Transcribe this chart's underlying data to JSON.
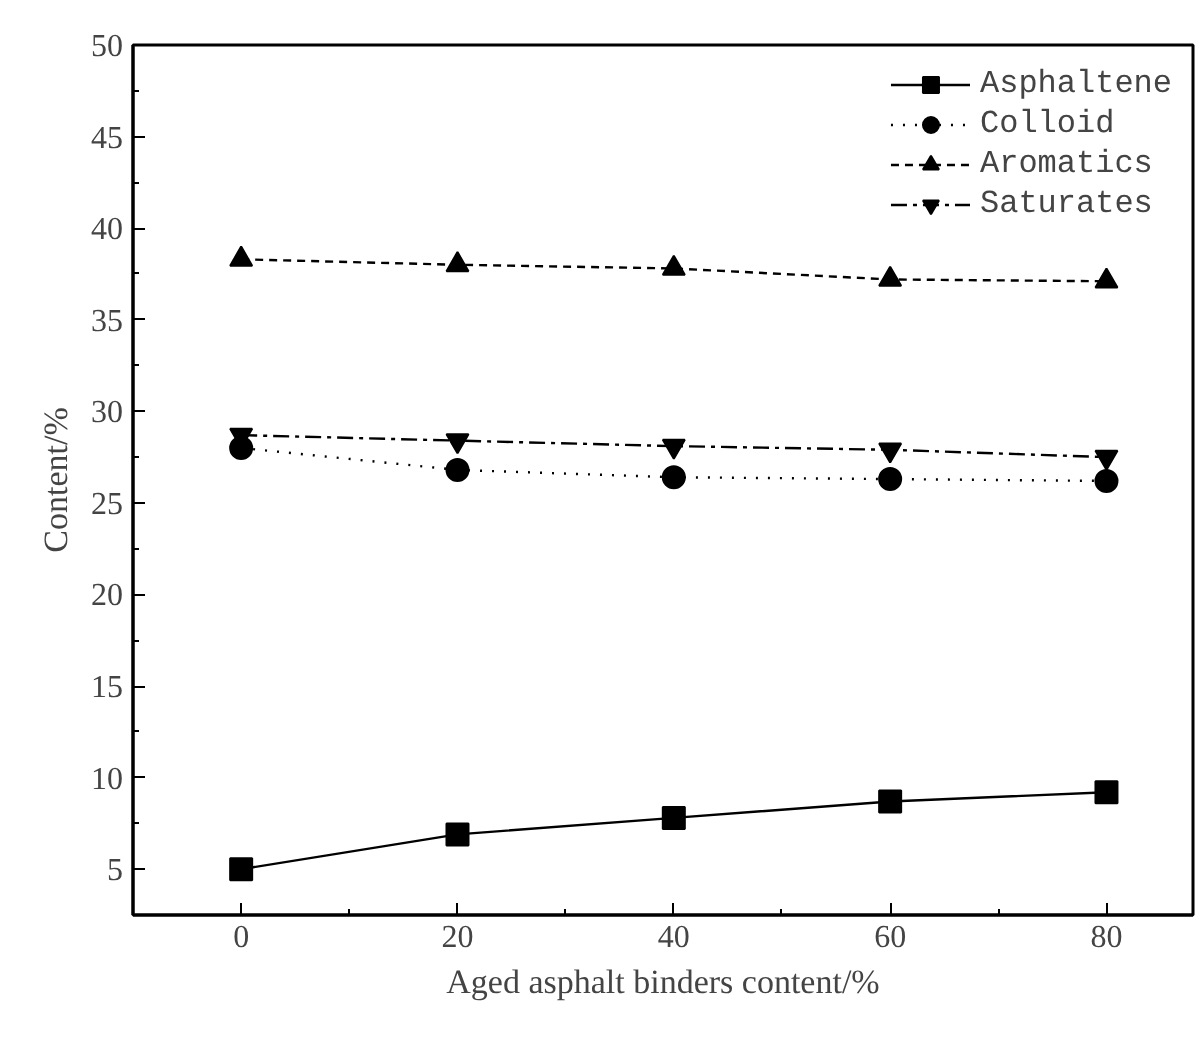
{
  "chart_data": {
    "type": "line",
    "xlabel": "Aged asphalt binders content/%",
    "ylabel": "Content/%",
    "x": [
      0,
      20,
      40,
      60,
      80
    ],
    "xlim": [
      -10,
      88
    ],
    "xticks": [
      0,
      20,
      40,
      60,
      80
    ],
    "ylim": [
      2.5,
      50
    ],
    "yticks": [
      5,
      10,
      15,
      20,
      25,
      30,
      35,
      40,
      45,
      50
    ],
    "grid": false,
    "legend": "top right",
    "series": [
      {
        "name": "Asphaltene",
        "color": "#000000",
        "marker": "square",
        "line_style": "solid",
        "values": [
          5.0,
          6.9,
          7.8,
          8.7,
          9.2
        ]
      },
      {
        "name": "Colloid",
        "color": "#000000",
        "marker": "circle",
        "line_style": "dotted",
        "values": [
          28.0,
          26.8,
          26.4,
          26.3,
          26.2
        ]
      },
      {
        "name": "Aromatics",
        "color": "#000000",
        "marker": "triangle",
        "line_style": "dashed",
        "values": [
          38.3,
          38.0,
          37.8,
          37.2,
          37.1
        ]
      },
      {
        "name": "Saturates",
        "color": "#000000",
        "marker": "triangle",
        "line_style": "dashdot",
        "values": [
          28.7,
          28.4,
          28.1,
          27.9,
          27.5
        ]
      }
    ]
  }
}
